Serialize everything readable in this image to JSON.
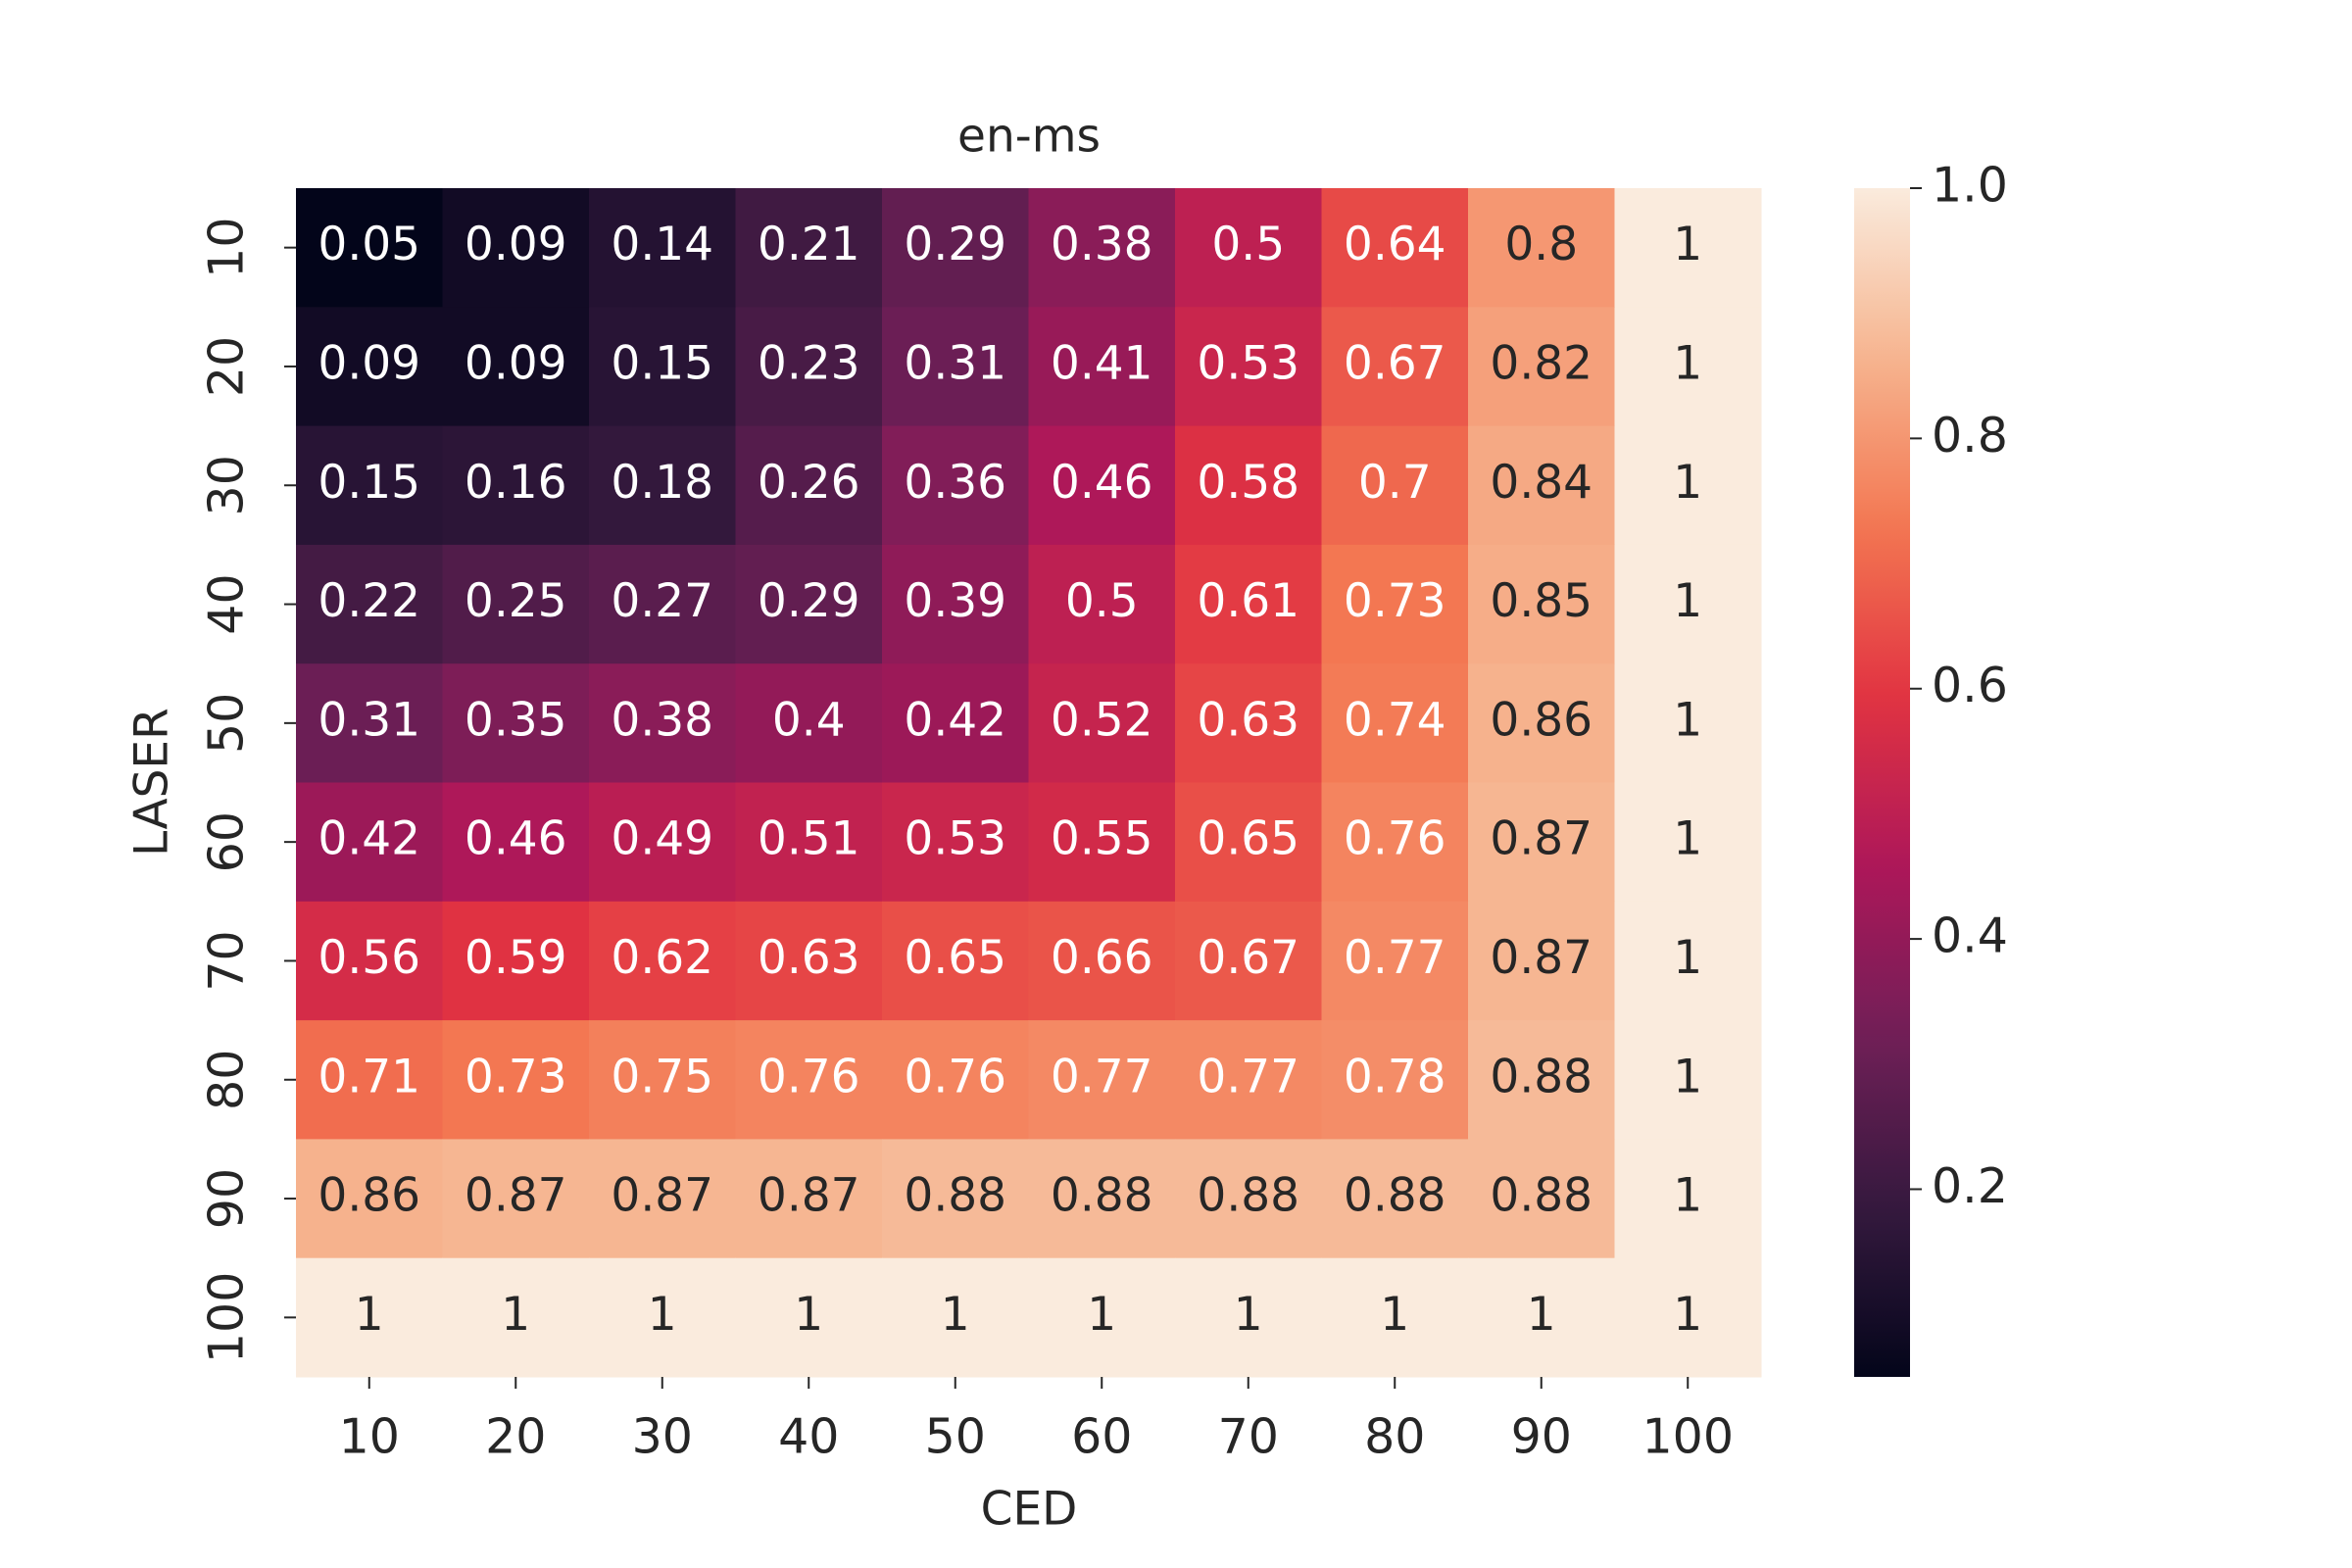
{
  "chart_data": {
    "type": "heatmap",
    "title": "en-ms",
    "xlabel": "CED",
    "ylabel": "LASER",
    "x": [
      10,
      20,
      30,
      40,
      50,
      60,
      70,
      80,
      90,
      100
    ],
    "y": [
      10,
      20,
      30,
      40,
      50,
      60,
      70,
      80,
      90,
      100
    ],
    "values": [
      [
        0.05,
        0.09,
        0.14,
        0.21,
        0.29,
        0.38,
        0.5,
        0.64,
        0.8,
        1
      ],
      [
        0.09,
        0.09,
        0.15,
        0.23,
        0.31,
        0.41,
        0.53,
        0.67,
        0.82,
        1
      ],
      [
        0.15,
        0.16,
        0.18,
        0.26,
        0.36,
        0.46,
        0.58,
        0.7,
        0.84,
        1
      ],
      [
        0.22,
        0.25,
        0.27,
        0.29,
        0.39,
        0.5,
        0.61,
        0.73,
        0.85,
        1
      ],
      [
        0.31,
        0.35,
        0.38,
        0.4,
        0.42,
        0.52,
        0.63,
        0.74,
        0.86,
        1
      ],
      [
        0.42,
        0.46,
        0.49,
        0.51,
        0.53,
        0.55,
        0.65,
        0.76,
        0.87,
        1
      ],
      [
        0.56,
        0.59,
        0.62,
        0.63,
        0.65,
        0.66,
        0.67,
        0.77,
        0.87,
        1
      ],
      [
        0.71,
        0.73,
        0.75,
        0.76,
        0.76,
        0.77,
        0.77,
        0.78,
        0.88,
        1
      ],
      [
        0.86,
        0.87,
        0.87,
        0.87,
        0.88,
        0.88,
        0.88,
        0.88,
        0.88,
        1
      ],
      [
        1,
        1,
        1,
        1,
        1,
        1,
        1,
        1,
        1,
        1
      ]
    ],
    "colormap": "rocket",
    "clim": [
      0.05,
      1
    ],
    "cticks": [
      0.2,
      0.4,
      0.6,
      0.8,
      {
        "value": 1.0,
        "label": "1.0"
      }
    ]
  }
}
